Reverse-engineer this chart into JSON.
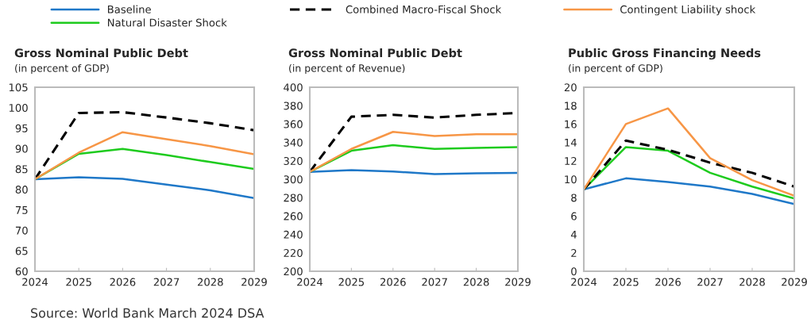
{
  "chart_data": [
    {
      "type": "line",
      "title": "Gross Nominal Public Debt",
      "subtitle": "(in percent of GDP)",
      "x": [
        2024,
        2025,
        2026,
        2027,
        2028,
        2029
      ],
      "xlim": [
        2024,
        2029
      ],
      "xticks": [
        2024,
        2025,
        2026,
        2027,
        2028,
        2029
      ],
      "ylim": [
        60,
        105
      ],
      "yticks": [
        60,
        65,
        70,
        75,
        80,
        85,
        90,
        95,
        100,
        105
      ],
      "legend": "top",
      "annotations": [
        "Source: World Bank March 2024 DSA"
      ],
      "series": [
        {
          "name": "Baseline",
          "color": "#1f78c8",
          "values": [
            82.5,
            83.0,
            82.6,
            81.2,
            79.8,
            77.9
          ]
        },
        {
          "name": "Natural Disaster Shock",
          "color": "#1ecb1e",
          "values": [
            82.5,
            88.7,
            89.9,
            88.4,
            86.7,
            85.0
          ]
        },
        {
          "name": "Combined Macro-Fiscal Shock",
          "color": "#000000",
          "line_style": "dashed",
          "values": [
            82.5,
            98.7,
            98.9,
            97.6,
            96.2,
            94.5
          ]
        },
        {
          "name": "Contingent Liability shock",
          "color": "#f79646",
          "values": [
            82.5,
            89.0,
            94.0,
            92.3,
            90.6,
            88.6
          ]
        }
      ]
    },
    {
      "type": "line",
      "title": "Gross Nominal Public Debt",
      "subtitle": "(in percent of Revenue)",
      "x": [
        2024,
        2025,
        2026,
        2027,
        2028,
        2029
      ],
      "xlim": [
        2024,
        2029
      ],
      "xticks": [
        2024,
        2025,
        2026,
        2027,
        2028,
        2029
      ],
      "ylim": [
        200,
        400
      ],
      "yticks": [
        200,
        220,
        240,
        260,
        280,
        300,
        320,
        340,
        360,
        380,
        400
      ],
      "series": [
        {
          "color": "#1f78c8",
          "values": [
            308,
            310,
            308.5,
            305.5,
            306.5,
            307
          ]
        },
        {
          "color": "#1ecb1e",
          "values": [
            308,
            331,
            337,
            333,
            334,
            335
          ]
        },
        {
          "color": "#000000",
          "line_style": "dashed",
          "values": [
            308,
            368,
            370,
            367,
            370,
            372
          ]
        },
        {
          "color": "#f79646",
          "values": [
            308,
            333,
            351.5,
            347,
            349,
            349
          ]
        }
      ]
    },
    {
      "type": "line",
      "title": "Public Gross Financing Needs",
      "subtitle": "(in percent of GDP)",
      "x": [
        2024,
        2025,
        2026,
        2027,
        2028,
        2029
      ],
      "xlim": [
        2024,
        2029
      ],
      "xticks": [
        2024,
        2025,
        2026,
        2027,
        2028,
        2029
      ],
      "ylim": [
        0,
        20
      ],
      "yticks": [
        0,
        2,
        4,
        6,
        8,
        10,
        12,
        14,
        16,
        18,
        20
      ],
      "series": [
        {
          "color": "#1f78c8",
          "values": [
            8.9,
            10.1,
            9.7,
            9.2,
            8.4,
            7.3
          ]
        },
        {
          "color": "#1ecb1e",
          "values": [
            8.9,
            13.5,
            13.1,
            10.7,
            9.2,
            7.9
          ]
        },
        {
          "color": "#000000",
          "line_style": "dashed",
          "values": [
            8.9,
            14.2,
            13.2,
            11.8,
            10.7,
            9.2
          ]
        },
        {
          "color": "#f79646",
          "values": [
            8.9,
            16.0,
            17.7,
            12.3,
            9.9,
            8.2
          ]
        }
      ]
    }
  ]
}
